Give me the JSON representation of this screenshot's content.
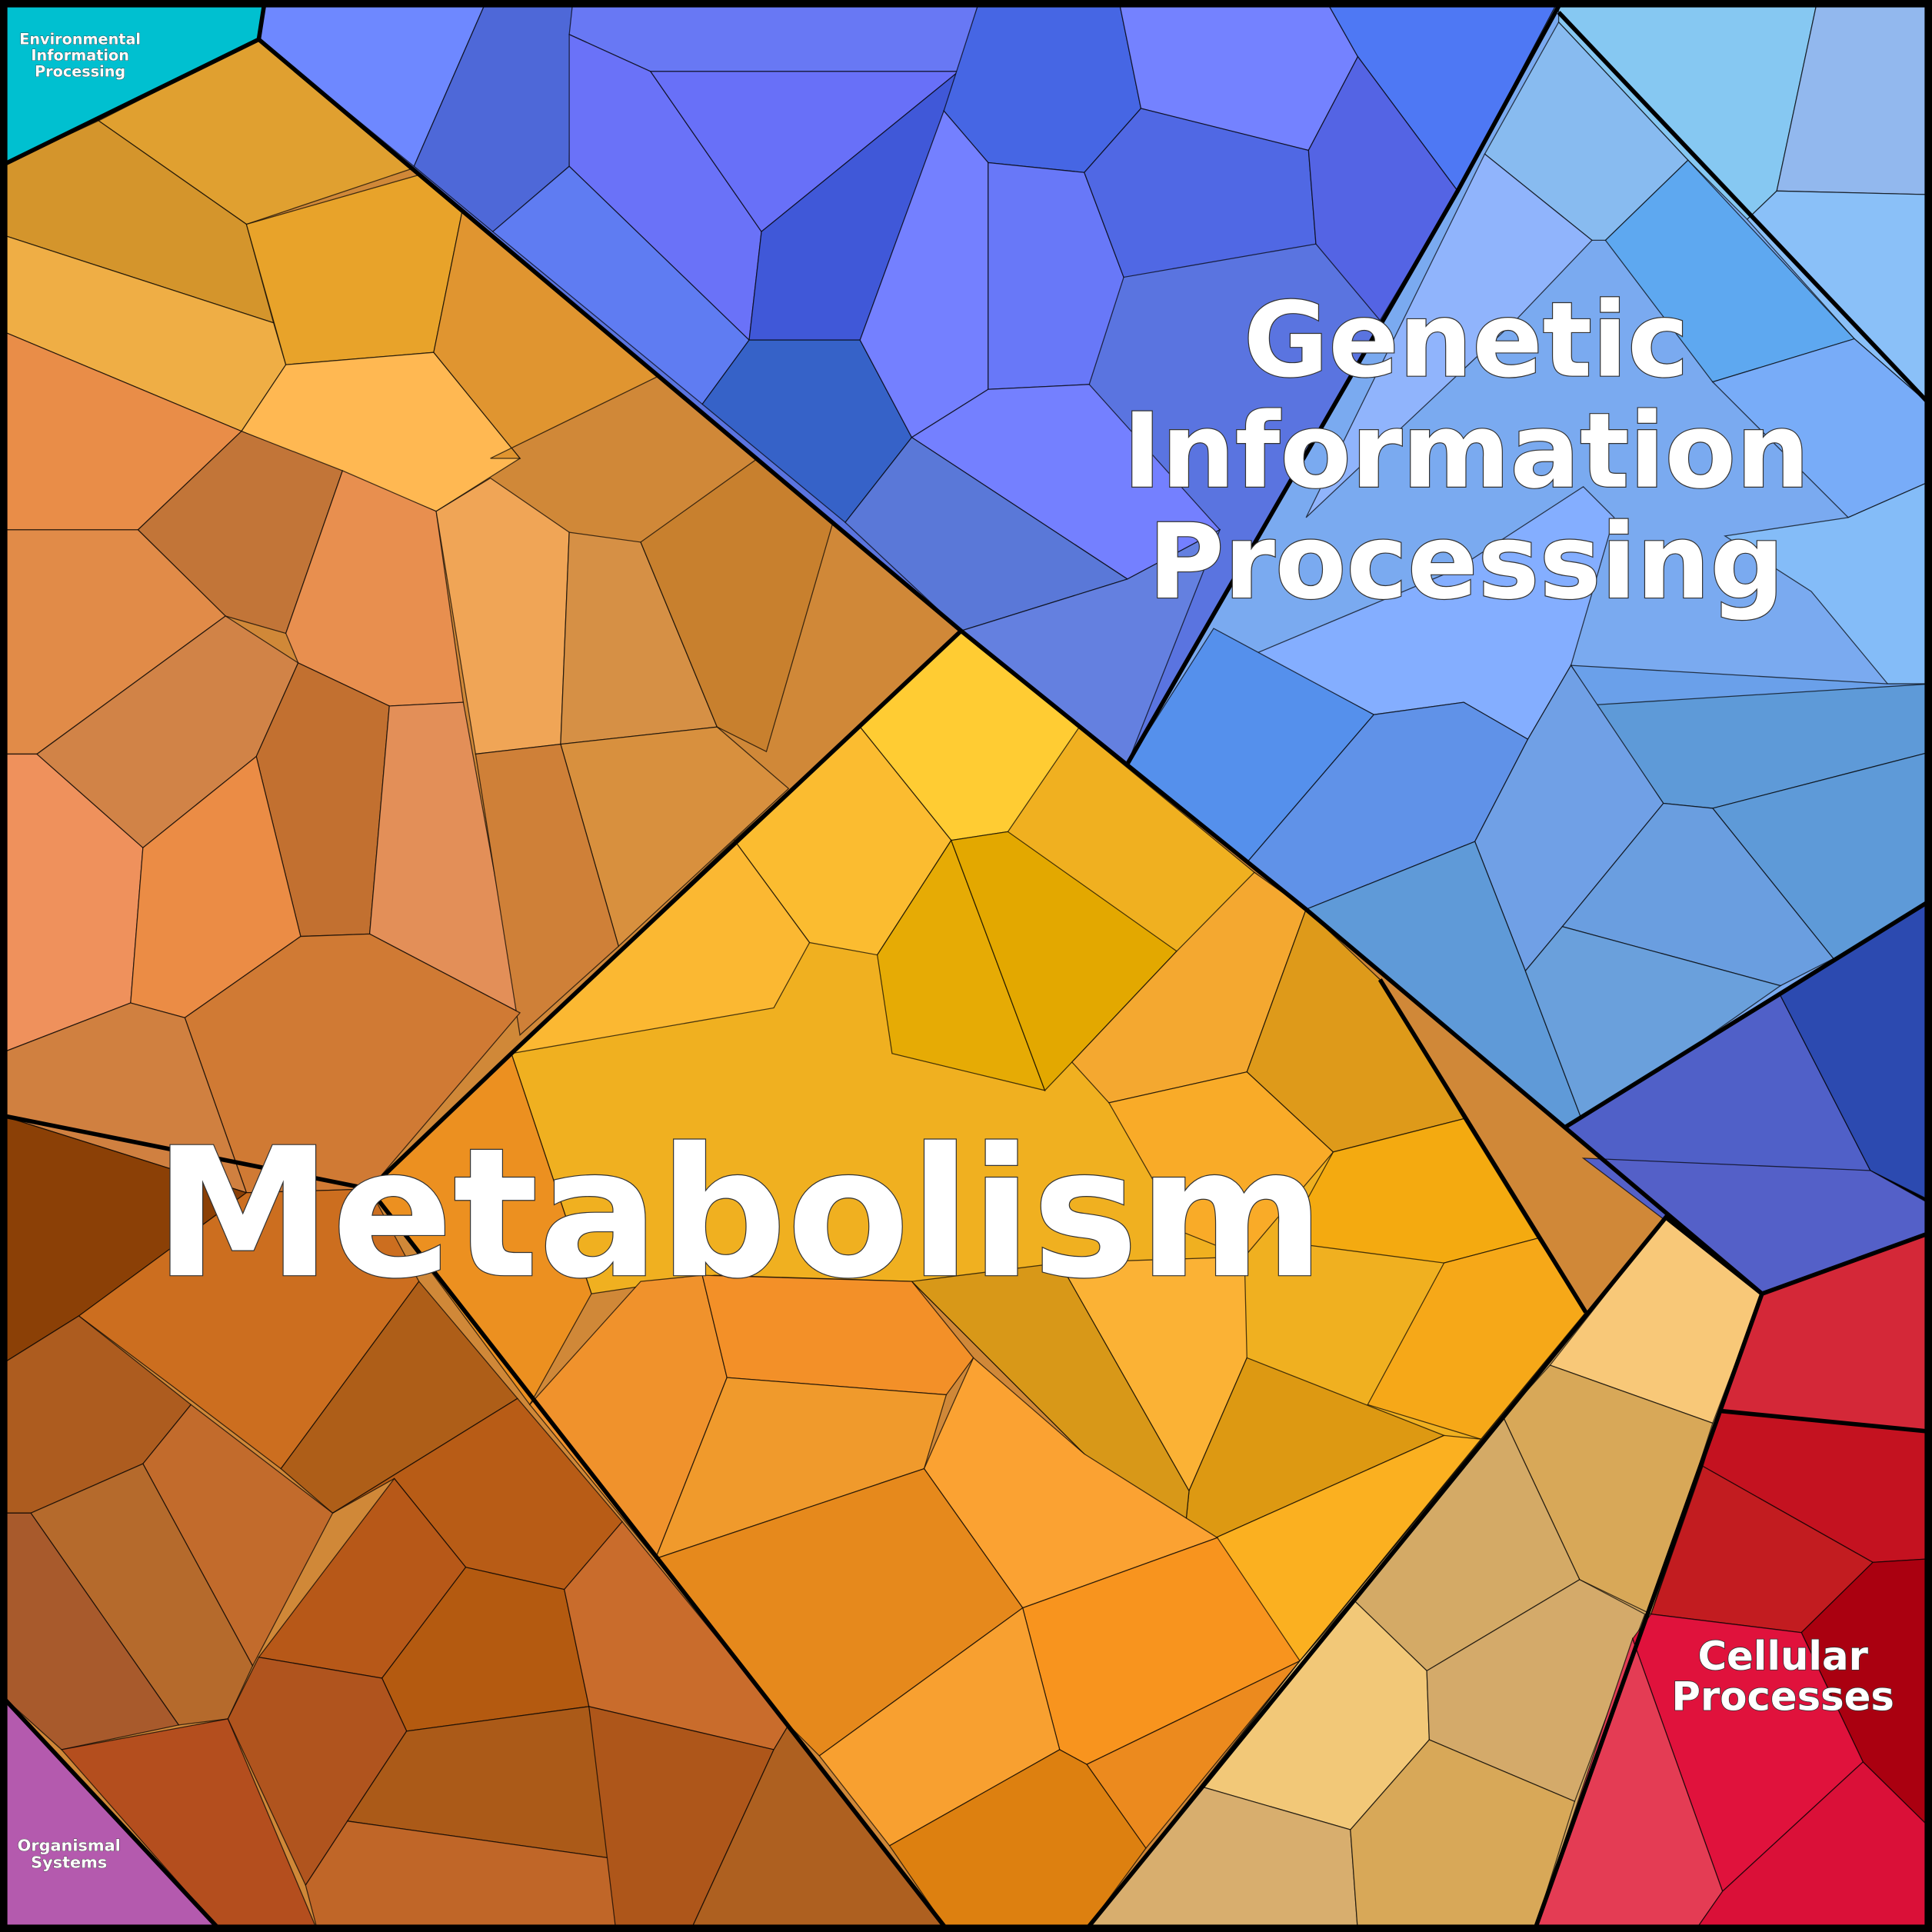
{
  "regions": [
    {
      "label": [
        "Environmental",
        "Information",
        "Processing"
      ]
    },
    {
      "label": [
        "Genetic",
        "Information",
        "Processing"
      ]
    },
    {
      "label": [
        "Metabolism"
      ]
    },
    {
      "label": [
        "Cellular",
        "Processes"
      ]
    },
    {
      "label": [
        "Organismal",
        "Systems"
      ]
    }
  ]
}
